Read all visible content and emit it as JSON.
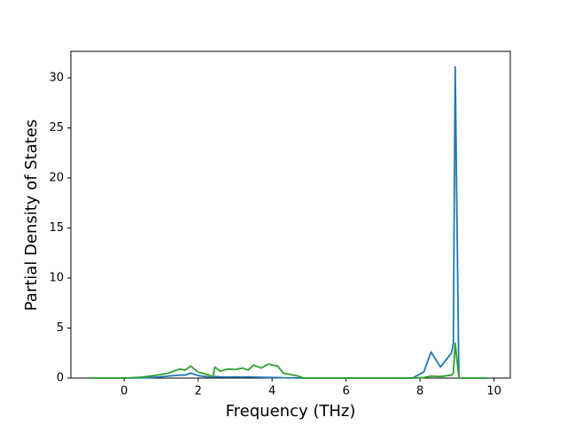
{
  "chart_data": {
    "type": "line",
    "xlabel": "Frequency (THz)",
    "ylabel": "Partial Density of States",
    "x": [
      -0.9,
      0,
      0.5,
      0.7,
      1.0,
      1.2,
      1.5,
      1.65,
      1.8,
      2.0,
      2.3,
      2.4,
      2.45,
      2.6,
      2.8,
      3.0,
      3.2,
      3.35,
      3.5,
      3.7,
      3.9,
      4.15,
      4.3,
      4.7,
      4.85,
      6.0,
      7.8,
      8.1,
      8.3,
      8.55,
      8.85,
      8.9,
      8.95,
      9.05,
      9.85
    ],
    "series": [
      {
        "color": "#1f77b4",
        "values": [
          0,
          0,
          0.02,
          0.05,
          0.12,
          0.2,
          0.3,
          0.3,
          0.5,
          0.25,
          0.1,
          0.12,
          0.15,
          0.12,
          0.1,
          0.12,
          0.1,
          0.12,
          0.1,
          0.08,
          0.06,
          0.05,
          0.03,
          0.01,
          0,
          0,
          0,
          0.6,
          2.6,
          1.1,
          2.5,
          3.5,
          31.1,
          0,
          0
        ]
      },
      {
        "color": "#2ca02c",
        "values": [
          0,
          0,
          0.1,
          0.2,
          0.35,
          0.5,
          0.9,
          0.8,
          1.2,
          0.6,
          0.3,
          0.1,
          1.1,
          0.7,
          0.9,
          0.85,
          1.0,
          0.8,
          1.3,
          1.0,
          1.4,
          1.2,
          0.5,
          0.2,
          0,
          0,
          0,
          0.05,
          0.2,
          0.15,
          0.3,
          0.5,
          3.5,
          0,
          0
        ]
      }
    ],
    "xlim": [
      -1.44,
      10.44
    ],
    "xticks": [
      0,
      2,
      4,
      6,
      8,
      10
    ],
    "ylim": [
      0,
      32.65
    ],
    "yticks": [
      0,
      5,
      10,
      15,
      20,
      25,
      30
    ],
    "grid": false
  }
}
